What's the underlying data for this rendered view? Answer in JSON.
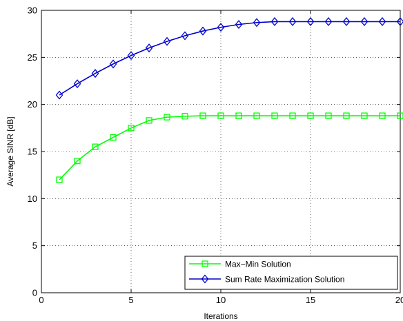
{
  "chart_data": {
    "type": "line",
    "title": "",
    "xlabel": "Iterations",
    "ylabel": "Average SINR [dB]",
    "xlim": [
      0,
      20
    ],
    "ylim": [
      0,
      30
    ],
    "xticks": [
      "0",
      "5",
      "10",
      "15",
      "20"
    ],
    "yticks": [
      "0",
      "5",
      "10",
      "15",
      "20",
      "25",
      "30"
    ],
    "grid": true,
    "legend_position": "bottom-right",
    "x": [
      1,
      2,
      3,
      4,
      5,
      6,
      7,
      8,
      9,
      10,
      11,
      12,
      13,
      14,
      15,
      16,
      17,
      18,
      19,
      20
    ],
    "series": [
      {
        "name": "Max−Min Solution",
        "color": "#00ff00",
        "marker": "square",
        "values": [
          12.0,
          14.0,
          15.5,
          16.5,
          17.5,
          18.3,
          18.65,
          18.75,
          18.8,
          18.8,
          18.8,
          18.8,
          18.8,
          18.8,
          18.8,
          18.8,
          18.8,
          18.8,
          18.8,
          18.8
        ]
      },
      {
        "name": "Sum Rate Maximization Solution",
        "color": "#0000cc",
        "marker": "diamond",
        "values": [
          21.0,
          22.2,
          23.3,
          24.3,
          25.2,
          26.0,
          26.7,
          27.3,
          27.8,
          28.2,
          28.5,
          28.7,
          28.8,
          28.8,
          28.8,
          28.8,
          28.8,
          28.8,
          28.8,
          28.8
        ]
      }
    ]
  }
}
